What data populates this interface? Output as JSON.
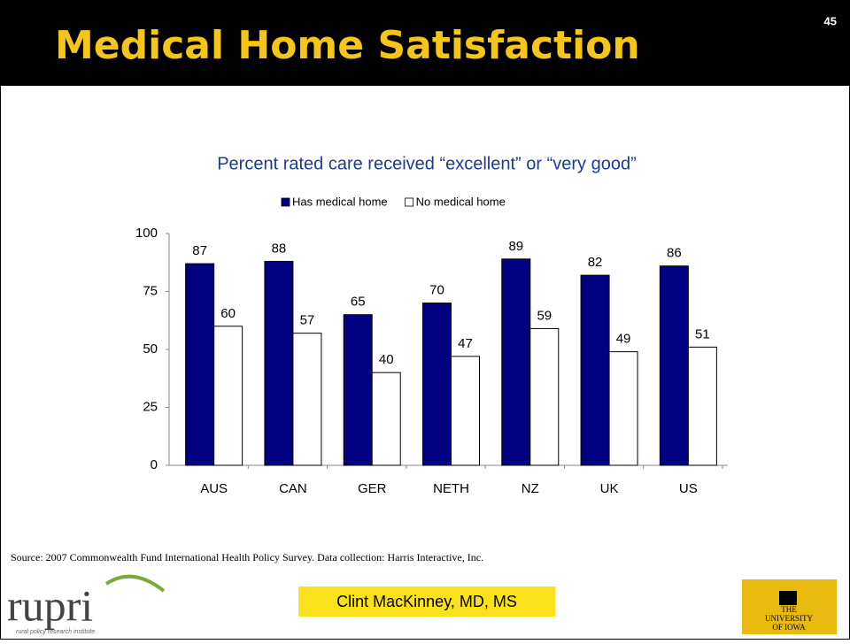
{
  "slide": {
    "title": "Medical Home Satisfaction",
    "number": "45"
  },
  "chart_data": {
    "type": "bar",
    "title": "Percent rated care received “excellent” or “very good”",
    "categories": [
      "AUS",
      "CAN",
      "GER",
      "NETH",
      "NZ",
      "UK",
      "US"
    ],
    "series": [
      {
        "name": "Has medical home",
        "color": "#000080",
        "values": [
          87,
          88,
          65,
          70,
          89,
          82,
          86
        ]
      },
      {
        "name": "No medical home",
        "color": "#ffffff",
        "values": [
          60,
          57,
          40,
          47,
          59,
          49,
          51
        ]
      }
    ],
    "ylim": [
      0,
      100
    ],
    "yticks": [
      0,
      25,
      50,
      75,
      100
    ],
    "legend": "top"
  },
  "footer": {
    "source": "Source: 2007 Commonwealth Fund International Health Policy Survey. Data collection: Harris Interactive, Inc.",
    "presenter": "Clint MacKinney, MD, MS",
    "rupri_logo": "rupri",
    "rupri_tagline": "rural policy research institute",
    "iowa_logo": [
      "THE",
      "UNIVERSITY",
      "OF IOWA"
    ]
  }
}
